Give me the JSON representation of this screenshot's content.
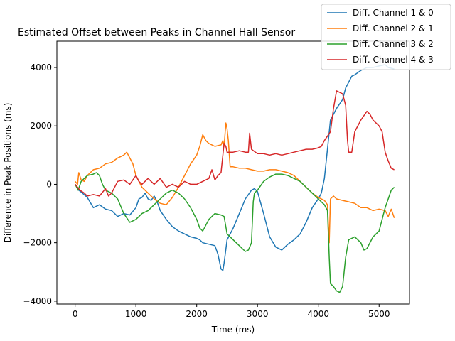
{
  "chart_data": {
    "type": "line",
    "title": "Estimated Offset between Peaks in Channel Hall Sensor",
    "xlabel": "Time (ms)",
    "ylabel": "Difference in Peak Positions (ms)",
    "xlim": [
      -300,
      5500
    ],
    "ylim": [
      -4100,
      4900
    ],
    "xticks": [
      0,
      1000,
      2000,
      3000,
      4000,
      5000
    ],
    "yticks": [
      -4000,
      -2000,
      0,
      2000,
      4000
    ],
    "legend_position": "top-right",
    "grid": false,
    "series": [
      {
        "name": "Diff. Channel 1 & 0",
        "color": "#1f77b4",
        "points": [
          [
            0,
            0
          ],
          [
            60,
            -200
          ],
          [
            120,
            -300
          ],
          [
            200,
            -450
          ],
          [
            300,
            -800
          ],
          [
            400,
            -700
          ],
          [
            500,
            -850
          ],
          [
            600,
            -900
          ],
          [
            700,
            -1100
          ],
          [
            800,
            -1000
          ],
          [
            900,
            -1050
          ],
          [
            1000,
            -800
          ],
          [
            1050,
            -500
          ],
          [
            1100,
            -450
          ],
          [
            1150,
            -300
          ],
          [
            1200,
            -500
          ],
          [
            1250,
            -550
          ],
          [
            1300,
            -400
          ],
          [
            1350,
            -600
          ],
          [
            1400,
            -900
          ],
          [
            1500,
            -1200
          ],
          [
            1600,
            -1450
          ],
          [
            1700,
            -1600
          ],
          [
            1800,
            -1700
          ],
          [
            1900,
            -1800
          ],
          [
            2000,
            -1850
          ],
          [
            2050,
            -1900
          ],
          [
            2100,
            -2000
          ],
          [
            2200,
            -2050
          ],
          [
            2300,
            -2100
          ],
          [
            2350,
            -2400
          ],
          [
            2400,
            -2900
          ],
          [
            2430,
            -2950
          ],
          [
            2450,
            -2700
          ],
          [
            2500,
            -1900
          ],
          [
            2600,
            -1500
          ],
          [
            2700,
            -1000
          ],
          [
            2800,
            -500
          ],
          [
            2900,
            -200
          ],
          [
            2950,
            -150
          ],
          [
            3000,
            -250
          ],
          [
            3100,
            -1000
          ],
          [
            3200,
            -1800
          ],
          [
            3300,
            -2150
          ],
          [
            3400,
            -2250
          ],
          [
            3500,
            -2050
          ],
          [
            3600,
            -1900
          ],
          [
            3700,
            -1700
          ],
          [
            3800,
            -1300
          ],
          [
            3900,
            -800
          ],
          [
            4000,
            -500
          ],
          [
            4050,
            -300
          ],
          [
            4100,
            200
          ],
          [
            4150,
            1200
          ],
          [
            4200,
            2200
          ],
          [
            4300,
            2600
          ],
          [
            4400,
            2900
          ],
          [
            4450,
            3300
          ],
          [
            4500,
            3500
          ],
          [
            4550,
            3700
          ],
          [
            4600,
            3750
          ],
          [
            4700,
            3900
          ],
          [
            4800,
            4000
          ],
          [
            4900,
            4000
          ],
          [
            5000,
            4050
          ],
          [
            5100,
            4100
          ],
          [
            5150,
            4000
          ],
          [
            5250,
            3950
          ]
        ]
      },
      {
        "name": "Diff. Channel 2 & 1",
        "color": "#ff7f0e",
        "points": [
          [
            0,
            100
          ],
          [
            40,
            0
          ],
          [
            60,
            400
          ],
          [
            100,
            150
          ],
          [
            150,
            100
          ],
          [
            200,
            300
          ],
          [
            300,
            500
          ],
          [
            400,
            550
          ],
          [
            500,
            700
          ],
          [
            600,
            750
          ],
          [
            700,
            900
          ],
          [
            800,
            1000
          ],
          [
            850,
            1100
          ],
          [
            900,
            900
          ],
          [
            950,
            700
          ],
          [
            1000,
            300
          ],
          [
            1100,
            -100
          ],
          [
            1200,
            -300
          ],
          [
            1300,
            -500
          ],
          [
            1400,
            -650
          ],
          [
            1500,
            -700
          ],
          [
            1600,
            -450
          ],
          [
            1700,
            -100
          ],
          [
            1800,
            300
          ],
          [
            1900,
            700
          ],
          [
            2000,
            1000
          ],
          [
            2050,
            1300
          ],
          [
            2100,
            1700
          ],
          [
            2150,
            1500
          ],
          [
            2200,
            1400
          ],
          [
            2300,
            1300
          ],
          [
            2400,
            1350
          ],
          [
            2430,
            1500
          ],
          [
            2450,
            1300
          ],
          [
            2480,
            2100
          ],
          [
            2500,
            1900
          ],
          [
            2520,
            1500
          ],
          [
            2550,
            600
          ],
          [
            2600,
            600
          ],
          [
            2700,
            550
          ],
          [
            2800,
            550
          ],
          [
            2900,
            500
          ],
          [
            3000,
            450
          ],
          [
            3100,
            450
          ],
          [
            3200,
            500
          ],
          [
            3300,
            500
          ],
          [
            3400,
            450
          ],
          [
            3500,
            400
          ],
          [
            3600,
            300
          ],
          [
            3700,
            100
          ],
          [
            3800,
            -100
          ],
          [
            3900,
            -300
          ],
          [
            4000,
            -450
          ],
          [
            4100,
            -550
          ],
          [
            4150,
            -700
          ],
          [
            4180,
            -2000
          ],
          [
            4200,
            -500
          ],
          [
            4250,
            -400
          ],
          [
            4300,
            -500
          ],
          [
            4400,
            -550
          ],
          [
            4500,
            -600
          ],
          [
            4600,
            -650
          ],
          [
            4700,
            -800
          ],
          [
            4800,
            -800
          ],
          [
            4900,
            -900
          ],
          [
            5000,
            -850
          ],
          [
            5100,
            -900
          ],
          [
            5150,
            -1100
          ],
          [
            5200,
            -850
          ],
          [
            5250,
            -1150
          ]
        ]
      },
      {
        "name": "Diff. Channel 3 & 2",
        "color": "#2ca02c",
        "points": [
          [
            0,
            0
          ],
          [
            50,
            -200
          ],
          [
            100,
            100
          ],
          [
            200,
            300
          ],
          [
            300,
            350
          ],
          [
            350,
            400
          ],
          [
            400,
            300
          ],
          [
            450,
            0
          ],
          [
            500,
            -200
          ],
          [
            600,
            -300
          ],
          [
            700,
            -500
          ],
          [
            800,
            -1000
          ],
          [
            900,
            -1300
          ],
          [
            1000,
            -1200
          ],
          [
            1100,
            -1000
          ],
          [
            1200,
            -900
          ],
          [
            1300,
            -700
          ],
          [
            1400,
            -500
          ],
          [
            1500,
            -300
          ],
          [
            1600,
            -200
          ],
          [
            1700,
            -300
          ],
          [
            1800,
            -500
          ],
          [
            1900,
            -800
          ],
          [
            1950,
            -1000
          ],
          [
            2000,
            -1200
          ],
          [
            2050,
            -1500
          ],
          [
            2100,
            -1600
          ],
          [
            2200,
            -1200
          ],
          [
            2300,
            -1000
          ],
          [
            2400,
            -1050
          ],
          [
            2450,
            -1100
          ],
          [
            2500,
            -1700
          ],
          [
            2600,
            -1900
          ],
          [
            2700,
            -2100
          ],
          [
            2800,
            -2300
          ],
          [
            2850,
            -2250
          ],
          [
            2900,
            -2000
          ],
          [
            2930,
            -600
          ],
          [
            2950,
            -300
          ],
          [
            3000,
            -200
          ],
          [
            3100,
            100
          ],
          [
            3200,
            250
          ],
          [
            3300,
            350
          ],
          [
            3400,
            350
          ],
          [
            3500,
            300
          ],
          [
            3600,
            200
          ],
          [
            3700,
            100
          ],
          [
            3800,
            -100
          ],
          [
            3900,
            -300
          ],
          [
            4000,
            -500
          ],
          [
            4100,
            -700
          ],
          [
            4150,
            -900
          ],
          [
            4180,
            -2500
          ],
          [
            4200,
            -3400
          ],
          [
            4250,
            -3500
          ],
          [
            4300,
            -3650
          ],
          [
            4350,
            -3700
          ],
          [
            4400,
            -3500
          ],
          [
            4450,
            -2500
          ],
          [
            4500,
            -1900
          ],
          [
            4600,
            -1800
          ],
          [
            4700,
            -2000
          ],
          [
            4750,
            -2250
          ],
          [
            4800,
            -2200
          ],
          [
            4900,
            -1800
          ],
          [
            5000,
            -1600
          ],
          [
            5050,
            -1200
          ],
          [
            5100,
            -800
          ],
          [
            5150,
            -500
          ],
          [
            5200,
            -200
          ],
          [
            5250,
            -100
          ]
        ]
      },
      {
        "name": "Diff. Channel 4 & 3",
        "color": "#d62728",
        "points": [
          [
            0,
            0
          ],
          [
            80,
            -200
          ],
          [
            150,
            -300
          ],
          [
            200,
            -400
          ],
          [
            300,
            -350
          ],
          [
            400,
            -400
          ],
          [
            500,
            -150
          ],
          [
            550,
            -400
          ],
          [
            600,
            -300
          ],
          [
            700,
            100
          ],
          [
            800,
            150
          ],
          [
            900,
            0
          ],
          [
            1000,
            300
          ],
          [
            1050,
            100
          ],
          [
            1100,
            0
          ],
          [
            1200,
            200
          ],
          [
            1300,
            0
          ],
          [
            1400,
            200
          ],
          [
            1500,
            -100
          ],
          [
            1600,
            0
          ],
          [
            1700,
            -100
          ],
          [
            1800,
            100
          ],
          [
            1900,
            0
          ],
          [
            2000,
            0
          ],
          [
            2100,
            100
          ],
          [
            2200,
            200
          ],
          [
            2250,
            500
          ],
          [
            2300,
            150
          ],
          [
            2350,
            300
          ],
          [
            2400,
            400
          ],
          [
            2450,
            1400
          ],
          [
            2480,
            1300
          ],
          [
            2500,
            1100
          ],
          [
            2600,
            1100
          ],
          [
            2700,
            1150
          ],
          [
            2800,
            1100
          ],
          [
            2850,
            1100
          ],
          [
            2870,
            1750
          ],
          [
            2900,
            1200
          ],
          [
            3000,
            1050
          ],
          [
            3100,
            1050
          ],
          [
            3200,
            1000
          ],
          [
            3300,
            1050
          ],
          [
            3400,
            1000
          ],
          [
            3500,
            1050
          ],
          [
            3600,
            1100
          ],
          [
            3700,
            1150
          ],
          [
            3800,
            1200
          ],
          [
            3900,
            1200
          ],
          [
            4000,
            1250
          ],
          [
            4050,
            1300
          ],
          [
            4100,
            1500
          ],
          [
            4200,
            1800
          ],
          [
            4250,
            2600
          ],
          [
            4300,
            3200
          ],
          [
            4400,
            3100
          ],
          [
            4450,
            2700
          ],
          [
            4480,
            1500
          ],
          [
            4500,
            1100
          ],
          [
            4550,
            1100
          ],
          [
            4600,
            1800
          ],
          [
            4700,
            2200
          ],
          [
            4800,
            2500
          ],
          [
            4850,
            2400
          ],
          [
            4900,
            2200
          ],
          [
            5000,
            2000
          ],
          [
            5050,
            1800
          ],
          [
            5100,
            1100
          ],
          [
            5150,
            800
          ],
          [
            5200,
            550
          ],
          [
            5250,
            500
          ]
        ]
      }
    ]
  }
}
